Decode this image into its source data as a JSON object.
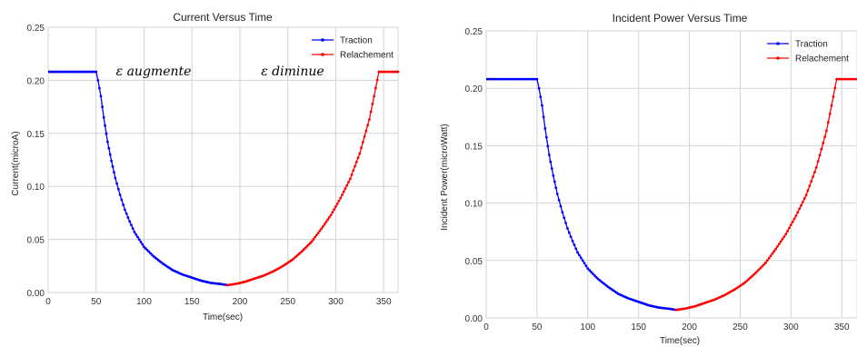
{
  "chart_data": [
    {
      "type": "line",
      "title": "Current Versus Time",
      "xlabel": "Time(sec)",
      "ylabel": "Current(microA)",
      "xlim": [
        0,
        365
      ],
      "ylim": [
        0,
        0.25
      ],
      "x_ticks": [
        0,
        50,
        100,
        150,
        200,
        250,
        300,
        350
      ],
      "y_ticks": [
        0.0,
        0.05,
        0.1,
        0.15,
        0.2,
        0.25
      ],
      "y_tick_labels": [
        "0.00",
        "0.05",
        "0.10",
        "0.15",
        "0.20",
        "0.25"
      ],
      "grid": true,
      "legend": "top-right",
      "annotations": [
        {
          "text": "ε augmente",
          "x": 110,
          "y": 0.209
        },
        {
          "text": "ε diminue",
          "x": 255,
          "y": 0.209
        }
      ],
      "series": [
        {
          "name": "Traction",
          "color": "#0000ff",
          "x": [
            0,
            50,
            52,
            55,
            58,
            62,
            66,
            70,
            75,
            80,
            85,
            90,
            95,
            100,
            110,
            120,
            130,
            140,
            150,
            160,
            170,
            180,
            187
          ],
          "y": [
            0.208,
            0.208,
            0.2,
            0.185,
            0.165,
            0.142,
            0.124,
            0.108,
            0.092,
            0.078,
            0.067,
            0.057,
            0.05,
            0.043,
            0.034,
            0.027,
            0.021,
            0.017,
            0.014,
            0.011,
            0.009,
            0.008,
            0.007
          ]
        },
        {
          "name": "Relachement",
          "color": "#ff0000",
          "x": [
            187,
            195,
            205,
            215,
            225,
            235,
            245,
            255,
            265,
            275,
            285,
            295,
            305,
            315,
            325,
            335,
            340,
            345,
            350,
            360,
            365
          ],
          "y": [
            0.007,
            0.008,
            0.01,
            0.013,
            0.016,
            0.02,
            0.025,
            0.031,
            0.039,
            0.048,
            0.06,
            0.073,
            0.089,
            0.107,
            0.131,
            0.163,
            0.185,
            0.208,
            0.208,
            0.208,
            0.208
          ]
        }
      ]
    },
    {
      "type": "line",
      "title": "Incident Power Versus Time",
      "xlabel": "Time(sec)",
      "ylabel": "Incident Power(microWatt)",
      "xlim": [
        0,
        365
      ],
      "ylim": [
        0,
        0.25
      ],
      "x_ticks": [
        0,
        50,
        100,
        150,
        200,
        250,
        300,
        350
      ],
      "y_ticks": [
        0.0,
        0.05,
        0.1,
        0.15,
        0.2,
        0.25
      ],
      "y_tick_labels": [
        "0.00",
        "0.05",
        "0.10",
        "0.15",
        "0.20",
        "0.25"
      ],
      "grid": true,
      "legend": "top-right",
      "annotations": [],
      "series": [
        {
          "name": "Traction",
          "color": "#0000ff",
          "x": [
            0,
            50,
            52,
            55,
            58,
            62,
            66,
            70,
            75,
            80,
            85,
            90,
            95,
            100,
            110,
            120,
            130,
            140,
            150,
            160,
            170,
            180,
            187
          ],
          "y": [
            0.208,
            0.208,
            0.2,
            0.185,
            0.165,
            0.142,
            0.124,
            0.108,
            0.092,
            0.078,
            0.067,
            0.057,
            0.05,
            0.043,
            0.034,
            0.027,
            0.021,
            0.017,
            0.014,
            0.011,
            0.009,
            0.008,
            0.007
          ]
        },
        {
          "name": "Relachement",
          "color": "#ff0000",
          "x": [
            187,
            195,
            205,
            215,
            225,
            235,
            245,
            255,
            265,
            275,
            285,
            295,
            305,
            315,
            325,
            335,
            340,
            345,
            350,
            360,
            365
          ],
          "y": [
            0.007,
            0.008,
            0.01,
            0.013,
            0.016,
            0.02,
            0.025,
            0.031,
            0.039,
            0.048,
            0.06,
            0.073,
            0.089,
            0.107,
            0.131,
            0.163,
            0.185,
            0.208,
            0.208,
            0.208,
            0.208
          ]
        }
      ]
    }
  ]
}
